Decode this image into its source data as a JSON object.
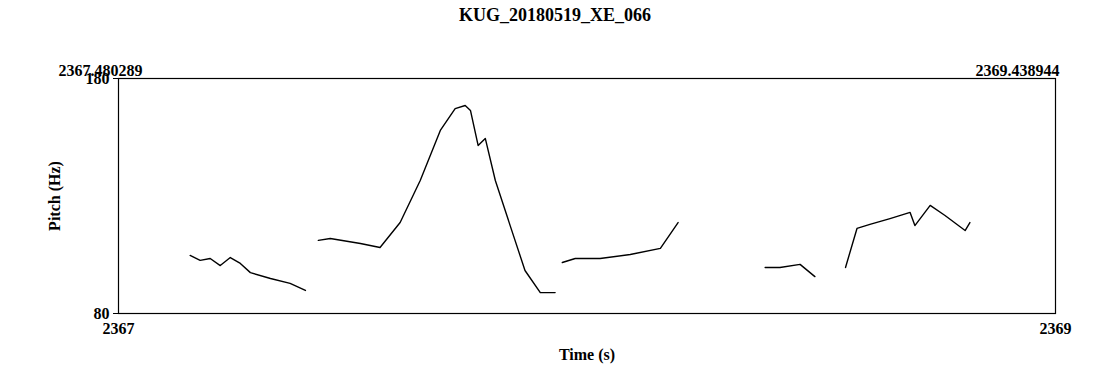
{
  "chart_data": {
    "type": "line",
    "title": "KUG_20180519_XE_066",
    "x_label": "Time (s)",
    "y_label": "Pitch (Hz)",
    "annotations": [
      "2367.480289",
      "2369.438944"
    ],
    "x": [
      2367.63,
      2367.651,
      2367.672,
      2367.693,
      2367.714,
      2367.735,
      2367.756,
      2367.798,
      2367.839,
      2367.871,
      null,
      2367.898,
      2367.923,
      2367.986,
      2368.027,
      2368.069,
      2368.111,
      2368.153,
      2368.184,
      2368.205,
      2368.216,
      2368.232,
      2368.247,
      2368.268,
      2368.299,
      2368.33,
      2368.362,
      2368.393,
      null,
      2368.408,
      2368.435,
      2368.487,
      2368.55,
      2368.613,
      2368.65,
      null,
      2368.832,
      2368.863,
      2368.905,
      2368.936,
      null,
      2369.0,
      2369.024,
      2369.051,
      2369.093,
      2369.135,
      2369.145,
      2369.177,
      2369.208,
      2369.25,
      2369.26
    ],
    "values": [
      104.7,
      102.6,
      103.4,
      100.4,
      103.8,
      101.3,
      97.4,
      94.9,
      92.8,
      89.8,
      null,
      111.1,
      111.9,
      109.8,
      108.1,
      118.7,
      136.6,
      157.9,
      167.2,
      168.5,
      166.4,
      151.5,
      154.5,
      136.6,
      117.4,
      98.3,
      88.9,
      88.9,
      null,
      101.7,
      103.4,
      103.4,
      105.1,
      107.7,
      118.7,
      null,
      99.6,
      99.6,
      100.9,
      95.7,
      null,
      99.6,
      116.2,
      117.9,
      120.4,
      123.0,
      117.4,
      126.0,
      121.7,
      115.3,
      118.7
    ],
    "color": "#000000",
    "xlim": [
      2367.480289,
      2369.438944
    ],
    "xticks": [
      {
        "value": 2367.480289,
        "label": "2367"
      },
      {
        "value": 2369.438944,
        "label": "2369"
      }
    ],
    "ylim": [
      80,
      180
    ],
    "yticks": [
      80,
      180
    ],
    "grid": false
  }
}
